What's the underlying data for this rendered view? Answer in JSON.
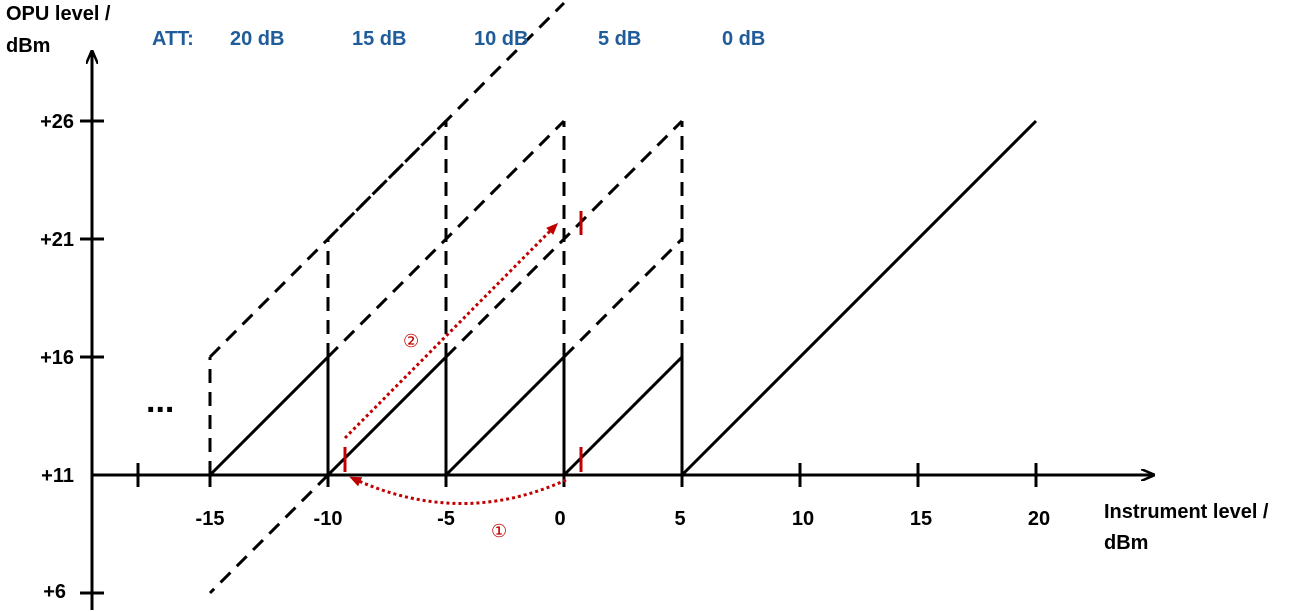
{
  "colors": {
    "axis": "#000000",
    "att_labels": "#1f5c99",
    "annotation": "#c00000"
  },
  "y_axis": {
    "title_line1": "OPU level /",
    "title_line2": "dBm",
    "ticks": [
      "+26",
      "+21",
      "+16",
      "+11",
      "+6"
    ]
  },
  "x_axis": {
    "title_line1": "Instrument level /",
    "title_line2": "dBm",
    "ticks": [
      "-15",
      "-10",
      "-5",
      "0",
      "5",
      "10",
      "15",
      "20"
    ]
  },
  "att": {
    "prefix": "ATT:",
    "levels": [
      "20 dB",
      "15 dB",
      "10 dB",
      "5 dB",
      "0 dB"
    ]
  },
  "ellipsis": "...",
  "steps": [
    "①",
    "②"
  ]
}
